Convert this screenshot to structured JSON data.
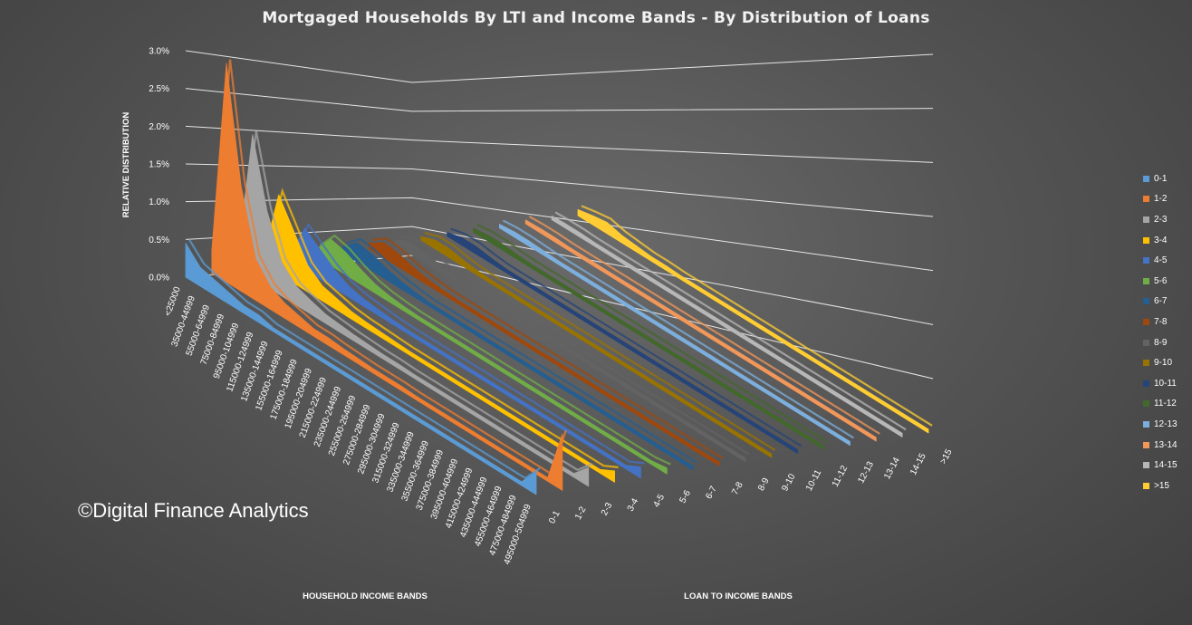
{
  "title": "Mortgaged Households By LTI and Income Bands - By Distribution of Loans",
  "copyright": "©Digital Finance Analytics",
  "chart_data": {
    "type": "area",
    "subtype": "3d-area",
    "title": "Mortgaged Households By LTI and Income Bands - By Distribution of Loans",
    "zlabel": "RELATIVE DISTRIBUTION",
    "xlabel": "HOUSEHOLD INCOME BANDS",
    "ylabel": "LOAN TO INCOME BANDS",
    "zlim": [
      0,
      3.0
    ],
    "z_ticks": [
      "0.0%",
      "0.5%",
      "1.0%",
      "1.5%",
      "2.0%",
      "2.5%",
      "3.0%"
    ],
    "grid": true,
    "legend_position": "right",
    "x_categories": [
      "<25000",
      "35000-44999",
      "55000-64999",
      "75000-84999",
      "95000-104999",
      "115000-124999",
      "135000-144999",
      "155000-164999",
      "175000-184999",
      "195000-204999",
      "215000-224999",
      "235000-244999",
      "255000-264999",
      "275000-284999",
      "295000-304999",
      "315000-324999",
      "335000-344999",
      "355000-364999",
      "375000-384999",
      "395000-404999",
      "415000-424999",
      "435000-444999",
      "455000-464999",
      "475000-484999",
      "495000-504999"
    ],
    "series": [
      {
        "name": "0-1",
        "color": "#5b9bd5",
        "values": [
          0.45,
          0.25,
          0.2,
          0.15,
          0.1,
          0.1,
          0.05,
          0.05,
          0.05,
          0.05,
          0.05,
          0.05,
          0.05,
          0.05,
          0.05,
          0.05,
          0.05,
          0.05,
          0.05,
          0.05,
          0.05,
          0.05,
          0.05,
          0.05,
          0.3
        ]
      },
      {
        "name": "1-2",
        "color": "#ed7d31",
        "values": [
          0.3,
          2.9,
          1.4,
          0.55,
          0.3,
          0.2,
          0.15,
          0.1,
          0.1,
          0.08,
          0.07,
          0.06,
          0.06,
          0.06,
          0.05,
          0.05,
          0.05,
          0.05,
          0.05,
          0.05,
          0.05,
          0.05,
          0.05,
          0.05,
          0.75
        ]
      },
      {
        "name": "2-3",
        "color": "#a5a5a5",
        "values": [
          0.2,
          1.9,
          1.0,
          0.45,
          0.25,
          0.18,
          0.12,
          0.1,
          0.08,
          0.07,
          0.06,
          0.06,
          0.05,
          0.05,
          0.05,
          0.05,
          0.05,
          0.05,
          0.05,
          0.05,
          0.05,
          0.05,
          0.05,
          0.05,
          0.25
        ]
      },
      {
        "name": "3-4",
        "color": "#ffc000",
        "values": [
          0.15,
          1.05,
          0.7,
          0.35,
          0.2,
          0.15,
          0.1,
          0.08,
          0.07,
          0.06,
          0.05,
          0.05,
          0.05,
          0.05,
          0.05,
          0.05,
          0.05,
          0.05,
          0.05,
          0.05,
          0.05,
          0.05,
          0.05,
          0.05,
          0.15
        ]
      },
      {
        "name": "4-5",
        "color": "#4472c4",
        "values": [
          0.1,
          0.55,
          0.4,
          0.25,
          0.15,
          0.1,
          0.08,
          0.06,
          0.05,
          0.05,
          0.05,
          0.05,
          0.05,
          0.05,
          0.05,
          0.05,
          0.05,
          0.05,
          0.05,
          0.05,
          0.05,
          0.05,
          0.05,
          0.05,
          0.15
        ]
      },
      {
        "name": "5-6",
        "color": "#70ad47",
        "values": [
          0.1,
          0.35,
          0.3,
          0.2,
          0.12,
          0.08,
          0.06,
          0.05,
          0.05,
          0.05,
          0.05,
          0.05,
          0.05,
          0.05,
          0.05,
          0.05,
          0.05,
          0.05,
          0.05,
          0.05,
          0.05,
          0.05,
          0.05,
          0.05,
          0.08
        ]
      },
      {
        "name": "6-7",
        "color": "#255e91",
        "values": [
          0.08,
          0.25,
          0.22,
          0.15,
          0.1,
          0.07,
          0.05,
          0.05,
          0.05,
          0.05,
          0.05,
          0.05,
          0.05,
          0.05,
          0.05,
          0.05,
          0.05,
          0.05,
          0.05,
          0.05,
          0.05,
          0.05,
          0.05,
          0.05,
          0.05
        ]
      },
      {
        "name": "7-8",
        "color": "#9e480e",
        "values": [
          0.07,
          0.2,
          0.18,
          0.12,
          0.08,
          0.06,
          0.05,
          0.05,
          0.05,
          0.05,
          0.05,
          0.05,
          0.05,
          0.05,
          0.05,
          0.05,
          0.05,
          0.05,
          0.05,
          0.05,
          0.05,
          0.05,
          0.05,
          0.05,
          0.05
        ]
      },
      {
        "name": "8-9",
        "color": "#636363",
        "values": [
          0.06,
          0.16,
          0.15,
          0.1,
          0.07,
          0.05,
          0.05,
          0.05,
          0.05,
          0.05,
          0.05,
          0.05,
          0.05,
          0.05,
          0.05,
          0.05,
          0.05,
          0.05,
          0.05,
          0.05,
          0.05,
          0.05,
          0.05,
          0.05,
          0.05
        ]
      },
      {
        "name": "9-10",
        "color": "#997300",
        "values": [
          0.05,
          0.12,
          0.12,
          0.08,
          0.06,
          0.05,
          0.05,
          0.05,
          0.05,
          0.05,
          0.05,
          0.05,
          0.05,
          0.05,
          0.05,
          0.05,
          0.05,
          0.05,
          0.05,
          0.05,
          0.05,
          0.05,
          0.05,
          0.05,
          0.05
        ]
      },
      {
        "name": "10-11",
        "color": "#264478",
        "values": [
          0.05,
          0.1,
          0.1,
          0.07,
          0.05,
          0.05,
          0.05,
          0.05,
          0.05,
          0.05,
          0.05,
          0.05,
          0.05,
          0.05,
          0.05,
          0.05,
          0.05,
          0.05,
          0.05,
          0.05,
          0.05,
          0.05,
          0.05,
          0.05,
          0.05
        ]
      },
      {
        "name": "11-12",
        "color": "#43682b",
        "values": [
          0.05,
          0.08,
          0.08,
          0.06,
          0.05,
          0.05,
          0.05,
          0.05,
          0.05,
          0.05,
          0.05,
          0.05,
          0.05,
          0.05,
          0.05,
          0.05,
          0.05,
          0.05,
          0.05,
          0.05,
          0.05,
          0.05,
          0.05,
          0.05,
          0.05
        ]
      },
      {
        "name": "12-13",
        "color": "#7cafdd",
        "values": [
          0.05,
          0.07,
          0.07,
          0.06,
          0.05,
          0.05,
          0.05,
          0.05,
          0.05,
          0.05,
          0.05,
          0.05,
          0.05,
          0.05,
          0.05,
          0.05,
          0.05,
          0.05,
          0.05,
          0.05,
          0.05,
          0.05,
          0.05,
          0.05,
          0.05
        ]
      },
      {
        "name": "13-14",
        "color": "#f1975a",
        "values": [
          0.05,
          0.06,
          0.06,
          0.05,
          0.05,
          0.05,
          0.05,
          0.05,
          0.05,
          0.05,
          0.05,
          0.05,
          0.05,
          0.05,
          0.05,
          0.05,
          0.05,
          0.05,
          0.05,
          0.05,
          0.05,
          0.05,
          0.05,
          0.05,
          0.05
        ]
      },
      {
        "name": "14-15",
        "color": "#b7b7b7",
        "values": [
          0.05,
          0.06,
          0.06,
          0.05,
          0.05,
          0.05,
          0.05,
          0.05,
          0.05,
          0.05,
          0.05,
          0.05,
          0.05,
          0.05,
          0.05,
          0.05,
          0.05,
          0.05,
          0.05,
          0.05,
          0.05,
          0.05,
          0.05,
          0.05,
          0.05
        ]
      },
      {
        "name": ">15",
        "color": "#ffcd33",
        "values": [
          0.08,
          0.12,
          0.15,
          0.1,
          0.08,
          0.06,
          0.06,
          0.05,
          0.05,
          0.05,
          0.05,
          0.05,
          0.05,
          0.05,
          0.05,
          0.05,
          0.05,
          0.05,
          0.05,
          0.05,
          0.05,
          0.05,
          0.05,
          0.05,
          0.05
        ]
      }
    ]
  }
}
